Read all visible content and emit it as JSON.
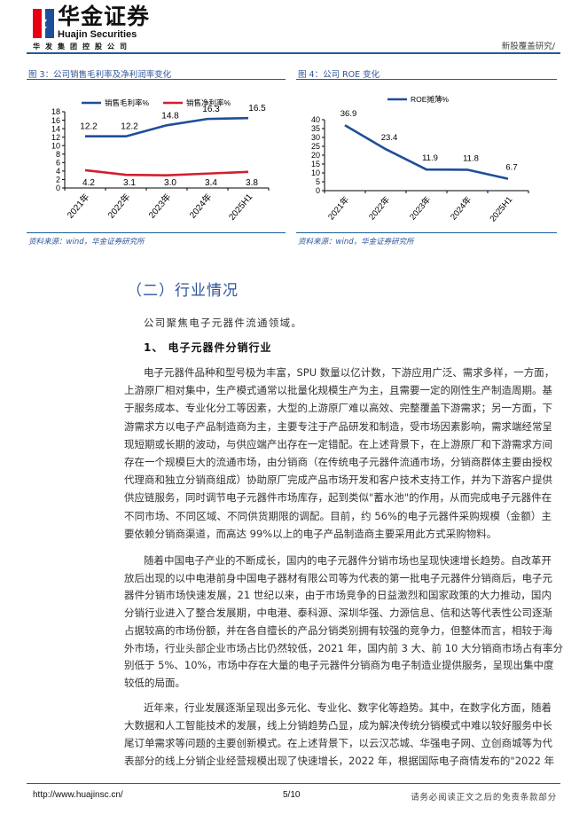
{
  "header": {
    "brand_cn": "华金证券",
    "brand_en": "Huajin Securities",
    "brand_group": "华发集团控股公司",
    "report_type": "新股覆盖研究/",
    "colors": {
      "logo_red": "#e60012",
      "logo_blue": "#1f4e9a",
      "rule": "#1f5b9a"
    }
  },
  "figures": [
    {
      "title": "图 3：公司销售毛利率及净利润率变化",
      "source": "资料来源：wind，华金证券研究所"
    },
    {
      "title": "图 4：公司 ROE 变化",
      "source": "资料来源：wind，华金证券研究所"
    }
  ],
  "chart_data": [
    {
      "type": "line",
      "categories": [
        "2021年",
        "2022年",
        "2023年",
        "2024年",
        "2025H1"
      ],
      "series": [
        {
          "name": "销售毛利率%",
          "values": [
            12.2,
            12.2,
            14.8,
            16.3,
            16.5
          ],
          "color": "#1f4e9a"
        },
        {
          "name": "销售净利率%",
          "values": [
            4.2,
            3.1,
            3.0,
            3.4,
            3.8
          ],
          "color": "#d0202f"
        }
      ],
      "yticks": [
        0,
        2,
        4,
        6,
        8,
        10,
        12,
        14,
        16,
        18
      ],
      "ylim": [
        0,
        18
      ],
      "legend": "top",
      "grid": false,
      "data_labels": true
    },
    {
      "type": "line",
      "categories": [
        "2021年",
        "2022年",
        "2023年",
        "2024年",
        "2025H1"
      ],
      "series": [
        {
          "name": "ROE摊薄%",
          "values": [
            36.9,
            23.4,
            11.9,
            11.8,
            6.7
          ],
          "color": "#1f4e9a"
        }
      ],
      "yticks": [
        0,
        5,
        10,
        15,
        20,
        25,
        30,
        35,
        40
      ],
      "ylim": [
        0,
        40
      ],
      "legend": "top",
      "grid": false,
      "data_labels": true
    }
  ],
  "section": {
    "heading": "（二）行业情况",
    "intro": "公司聚焦电子元器件流通领域。",
    "subheading": "1、 电子元器件分销行业",
    "paragraphs": [
      [
        "电子元器件品种和型号极为丰富，SPU 数量以亿计数，下游应用广泛、需求多样，一方面，",
        "上游原厂相对集中，生产模式通常以批量化规模生产为主，且需要一定的刚性生产制造周期。基",
        "于服务成本、专业化分工等因素，大型的上游原厂难以高效、完整覆盖下游需求；另一方面，下",
        "游需求方以电子产品制造商为主，主要专注于产品研发和制造，受市场因素影响，需求端经常呈",
        "现短期或长期的波动，与供应端产出存在一定错配。在上述背景下，在上游原厂和下游需求方间",
        "存在一个规模巨大的流通市场，由分销商（在传统电子元器件流通市场，分销商群体主要由授权",
        "代理商和独立分销商组成）协助原厂完成产品市场开发和客户技术支持工作，并为下游客户提供",
        "供应链服务，同时调节电子元器件市场库存，起到类似\"蓄水池\"的作用，从而完成电子元器件在",
        "不同市场、不同区域、不同供货期限的调配。目前，约 56%的电子元器件采购规模（金额）主",
        "要依赖分销商渠道，而高达 99%以上的电子产品制造商主要采用此方式采购物料。"
      ],
      [
        "随着中国电子产业的不断成长，国内的电子元器件分销市场也呈现快速增长趋势。自改革开",
        "放后出现的以中电港前身中国电子器材有限公司等为代表的第一批电子元器件分销商后，电子元",
        "器件分销市场快速发展，21 世纪以来，由于市场竞争的日益激烈和国家政策的大力推动，国内",
        "分销行业进入了整合发展期，中电港、泰科源、深圳华强、力源信息、信和达等代表性公司逐渐",
        "占据较高的市场份额，并在各自擅长的产品分销类别拥有较强的竞争力，但整体而言，相较于海",
        "外市场，行业头部企业市场占比仍然较低，2021 年，国内前 3 大、前 10 大分销商市场占有率分",
        "别低于 5%、10%，市场中存在大量的电子元器件分销商为电子制造业提供服务，呈现出集中度",
        "较低的局面。"
      ],
      [
        "近年来，行业发展逐渐呈现出多元化、专业化、数字化等趋势。其中，在数字化方面，随着",
        "大数据和人工智能技术的发展，线上分销趋势凸显，成为解决传统分销模式中难以较好服务中长",
        "尾订单需求等问题的主要创新模式。在上述背景下，以云汉芯城、华强电子网、立创商城等为代",
        "表部分的线上分销企业经营规模出现了快速增长，2022 年，根据国际电子商情发布的\"2022 年"
      ]
    ]
  },
  "footer": {
    "url": "http://www.huajinsc.cn/",
    "page": "5/10",
    "disclaimer": "请务必阅读正文之后的免责条款部分"
  }
}
